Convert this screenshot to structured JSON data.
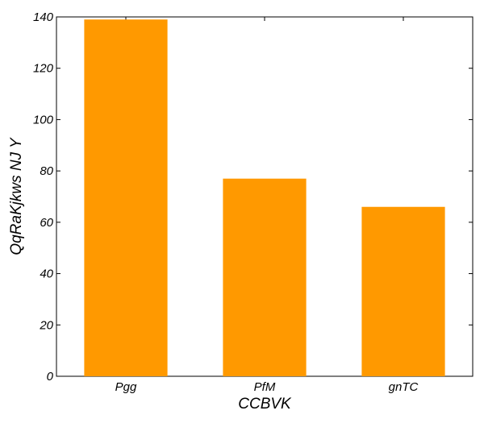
{
  "chart_data": {
    "type": "bar",
    "categories": [
      "Pgg",
      "PfM",
      "gnTC"
    ],
    "values": [
      139,
      77,
      66
    ],
    "xlabel": "CCBVK",
    "ylabel": "QqRaKjkws NJ Y",
    "ylim": [
      0,
      140
    ],
    "yticks": [
      0,
      20,
      40,
      60,
      80,
      100,
      120,
      140
    ],
    "bar_color": "#ff9900",
    "grid": false
  }
}
